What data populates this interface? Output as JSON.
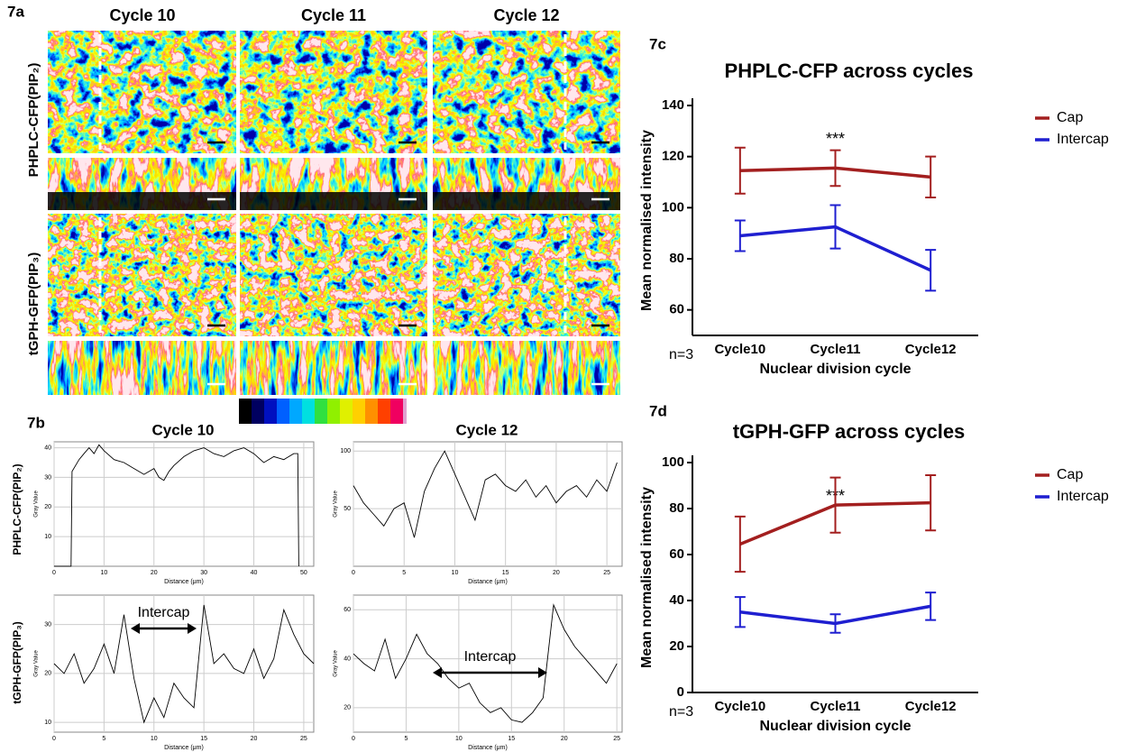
{
  "figure": {
    "panel_7a": "7a",
    "columns": [
      "Cycle 10",
      "Cycle 11",
      "Cycle 12"
    ],
    "rows": [
      "PHPLC-CFP(PIP₂)",
      "tGPH-GFP(PIP₃)"
    ],
    "panel_7b": "7b",
    "profile_columns": [
      "Cycle 10",
      "Cycle 12"
    ],
    "profile_rows": [
      "PHPLC-CFP(PIP₂)",
      "tGPH-GFP(PIP₃)"
    ]
  },
  "chart_data": [
    {
      "type": "profile",
      "x": [
        0,
        3.4,
        3.6,
        5,
        6,
        7,
        8,
        9,
        10,
        12,
        14,
        16,
        18,
        20,
        21,
        22,
        23,
        24,
        26,
        28,
        30,
        32,
        34,
        36,
        38,
        40,
        42,
        44,
        46,
        48,
        48.8,
        49
      ],
      "series": [
        {
          "color": "#000000",
          "values": [
            0,
            0,
            32,
            36,
            38,
            40,
            38,
            41,
            39,
            36,
            35,
            33,
            31,
            33,
            30,
            29,
            32,
            34,
            37,
            39,
            40,
            38,
            37,
            39,
            40,
            38,
            35,
            37,
            36,
            38,
            38,
            0
          ]
        }
      ],
      "xlim": [
        0,
        52
      ],
      "ylim": [
        0,
        42
      ],
      "xticks": [
        0,
        10,
        20,
        30,
        40,
        50
      ],
      "yticks": [
        10,
        20,
        30,
        40
      ],
      "x_label": "Distance (μm)",
      "y_label": "Gray Value",
      "grid": true
    },
    {
      "type": "profile",
      "x": [
        0,
        1,
        2,
        3,
        4,
        5,
        6,
        7,
        8,
        9,
        10,
        11,
        12,
        13,
        14,
        15,
        16,
        17,
        18,
        19,
        20,
        21,
        22,
        23,
        24,
        25,
        26
      ],
      "series": [
        {
          "color": "#000000",
          "values": [
            70,
            55,
            45,
            35,
            50,
            55,
            25,
            65,
            85,
            100,
            80,
            60,
            40,
            75,
            80,
            70,
            65,
            75,
            60,
            70,
            55,
            65,
            70,
            60,
            75,
            65,
            90
          ]
        }
      ],
      "xlim": [
        0,
        26.5
      ],
      "ylim": [
        0,
        108
      ],
      "xticks": [
        0,
        5,
        10,
        15,
        20,
        25
      ],
      "yticks": [
        50,
        100
      ],
      "x_label": "Distance (μm)",
      "y_label": "Gray Value",
      "grid": true
    },
    {
      "type": "profile",
      "x": [
        0,
        1,
        2,
        3,
        4,
        5,
        6,
        7,
        8,
        9,
        10,
        11,
        12,
        13,
        14,
        15,
        16,
        17,
        18,
        19,
        20,
        21,
        22,
        23,
        24,
        25,
        26
      ],
      "series": [
        {
          "color": "#000000",
          "values": [
            22,
            20,
            24,
            18,
            21,
            26,
            20,
            32,
            19,
            10,
            15,
            11,
            18,
            15,
            13,
            34,
            22,
            24,
            21,
            20,
            25,
            19,
            23,
            33,
            28,
            24,
            22
          ]
        }
      ],
      "xlim": [
        0,
        26
      ],
      "ylim": [
        8,
        36
      ],
      "xticks": [
        0,
        5,
        10,
        15,
        20,
        25
      ],
      "yticks": [
        10,
        20,
        30
      ],
      "x_label": "Distance (μm)",
      "y_label": "Gray Value",
      "grid": true,
      "annotation": "Intercap"
    },
    {
      "type": "profile",
      "x": [
        0,
        1,
        2,
        3,
        4,
        5,
        6,
        7,
        8,
        9,
        10,
        11,
        12,
        13,
        14,
        15,
        16,
        17,
        18,
        19,
        20,
        21,
        22,
        23,
        24,
        25
      ],
      "series": [
        {
          "color": "#000000",
          "values": [
            42,
            38,
            35,
            48,
            32,
            40,
            50,
            42,
            38,
            32,
            28,
            30,
            22,
            18,
            20,
            15,
            14,
            18,
            24,
            62,
            52,
            45,
            40,
            35,
            30,
            38
          ]
        }
      ],
      "xlim": [
        0,
        25.5
      ],
      "ylim": [
        10,
        66
      ],
      "xticks": [
        0,
        5,
        10,
        15,
        20,
        25
      ],
      "yticks": [
        20,
        40,
        60
      ],
      "x_label": "Distance (μm)",
      "y_label": "Gray Value",
      "grid": true,
      "annotation": "Intercap"
    },
    {
      "type": "errorline",
      "panel": "7c",
      "title": "PHPLC-CFP across cycles",
      "categories": [
        "Cycle10",
        "Cycle11",
        "Cycle12"
      ],
      "series": [
        {
          "name": "Cap",
          "color": "#a31f1f",
          "values": [
            114.5,
            115.5,
            112
          ],
          "errors": [
            9,
            7,
            8
          ]
        },
        {
          "name": "Intercap",
          "color": "#1f1fd0",
          "values": [
            89,
            92.5,
            75.5
          ],
          "errors": [
            6,
            8.5,
            8
          ]
        }
      ],
      "ylim": [
        50,
        140
      ],
      "yticks": [
        60,
        80,
        100,
        120,
        140
      ],
      "y_label": "Mean normalised intensity",
      "x_label": "Nuclear division cycle",
      "sample": "n=3",
      "annotation": "***",
      "legend": "right"
    },
    {
      "type": "errorline",
      "panel": "7d",
      "title": "tGPH-GFP across cycles",
      "categories": [
        "Cycle10",
        "Cycle11",
        "Cycle12"
      ],
      "series": [
        {
          "name": "Cap",
          "color": "#a31f1f",
          "values": [
            64.5,
            81.5,
            82.5
          ],
          "errors": [
            12,
            12,
            12
          ]
        },
        {
          "name": "Intercap",
          "color": "#1f1fd0",
          "values": [
            35,
            30,
            37.5
          ],
          "errors": [
            6.5,
            4,
            6
          ]
        }
      ],
      "ylim": [
        0,
        100
      ],
      "yticks": [
        0,
        20,
        40,
        60,
        80,
        100
      ],
      "y_label": "Mean normalised intensity",
      "x_label": "Nuclear division cycle",
      "sample": "n=3",
      "annotation": "***",
      "legend": "right"
    }
  ]
}
